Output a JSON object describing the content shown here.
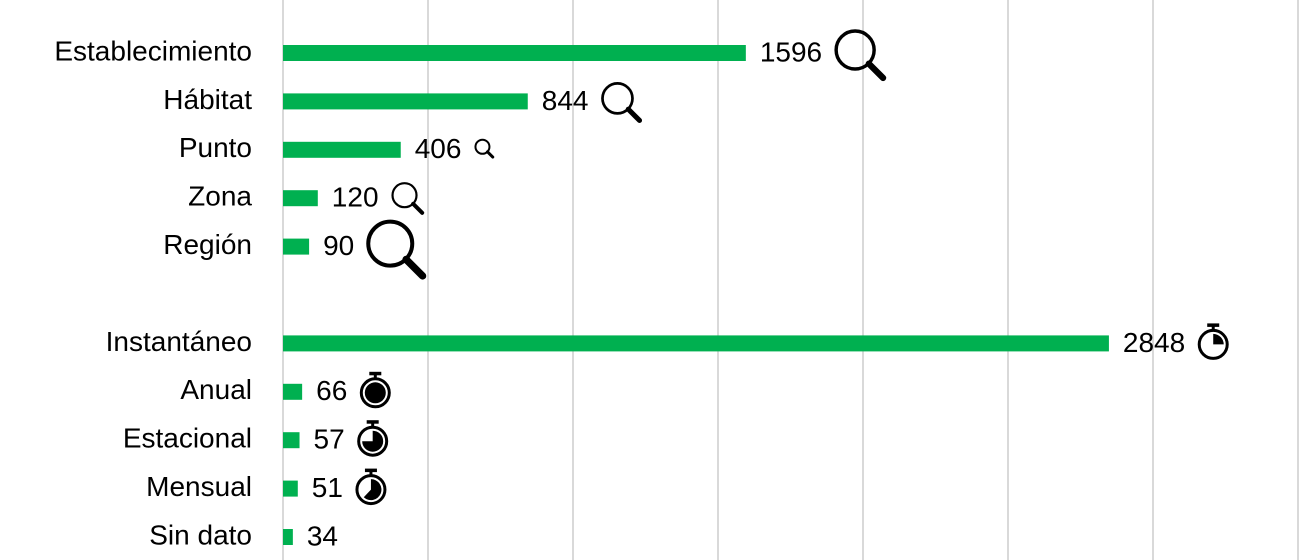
{
  "chart_data": {
    "type": "bar",
    "orientation": "horizontal",
    "categories": [
      "Establecimiento",
      "Hábitat",
      "Punto",
      "Zona",
      "Región",
      null,
      "Instantáneo",
      "Anual",
      "Estacional",
      "Mensual",
      "Sin dato"
    ],
    "values": [
      1596,
      844,
      406,
      120,
      90,
      null,
      2848,
      66,
      57,
      51,
      34
    ],
    "color": "#00b050",
    "xlim": [
      0,
      3500
    ],
    "xticks": [
      0,
      500,
      1000,
      1500,
      2000,
      2500,
      3000,
      3500
    ],
    "grid": true
  }
}
